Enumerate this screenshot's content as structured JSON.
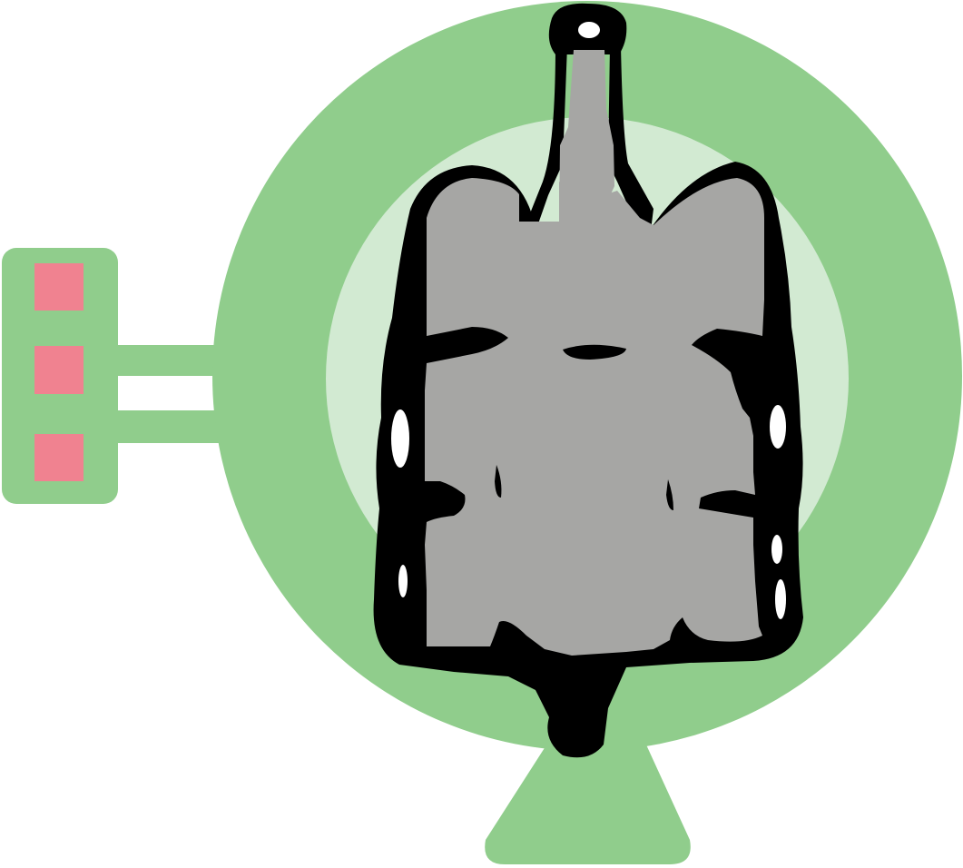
{
  "illustration": {
    "subject": "scanner-with-torso-icon",
    "colors": {
      "ring_green": "#90cd8c",
      "inner_green": "#d2ead2",
      "indicator_pink": "#f08290",
      "torso_gray": "#a6a6a4",
      "outline_black": "#000000",
      "background": "#ffffff"
    },
    "control_panel": {
      "indicator_count": 3
    }
  }
}
